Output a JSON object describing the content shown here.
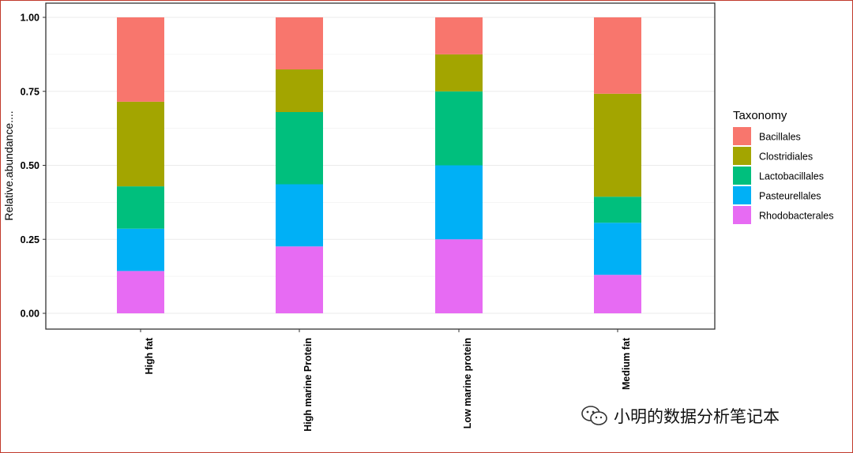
{
  "chart_data": {
    "type": "bar",
    "stacked": true,
    "categories": [
      "High fat",
      "High marine Protein",
      "Low marine protein",
      "Medium fat"
    ],
    "series": [
      {
        "name": "Rhodobacterales",
        "color": "#E76BF3",
        "values": [
          0.143,
          0.226,
          0.25,
          0.13
        ]
      },
      {
        "name": "Pasteurellales",
        "color": "#00B0F6",
        "values": [
          0.143,
          0.21,
          0.25,
          0.176
        ]
      },
      {
        "name": "Lactobacillales",
        "color": "#00BF7D",
        "values": [
          0.143,
          0.244,
          0.25,
          0.088
        ]
      },
      {
        "name": "Clostridiales",
        "color": "#A3A500",
        "values": [
          0.286,
          0.144,
          0.125,
          0.348
        ]
      },
      {
        "name": "Bacillales",
        "color": "#F8766D",
        "values": [
          0.285,
          0.176,
          0.125,
          0.258
        ]
      }
    ],
    "legend_order": [
      "Bacillales",
      "Clostridiales",
      "Lactobacillales",
      "Pasteurellales",
      "Rhodobacterales"
    ],
    "title": "",
    "xlabel": "",
    "ylabel": "Relative.abundance....",
    "ylim": [
      0,
      1
    ],
    "yticks": [
      "0.00",
      "0.25",
      "0.50",
      "0.75",
      "1.00"
    ],
    "legend_title": "Taxonomy",
    "legend_position": "right",
    "grid": true
  },
  "watermark": {
    "text": "小明的数据分析笔记本",
    "icon": "wechat-icon"
  }
}
